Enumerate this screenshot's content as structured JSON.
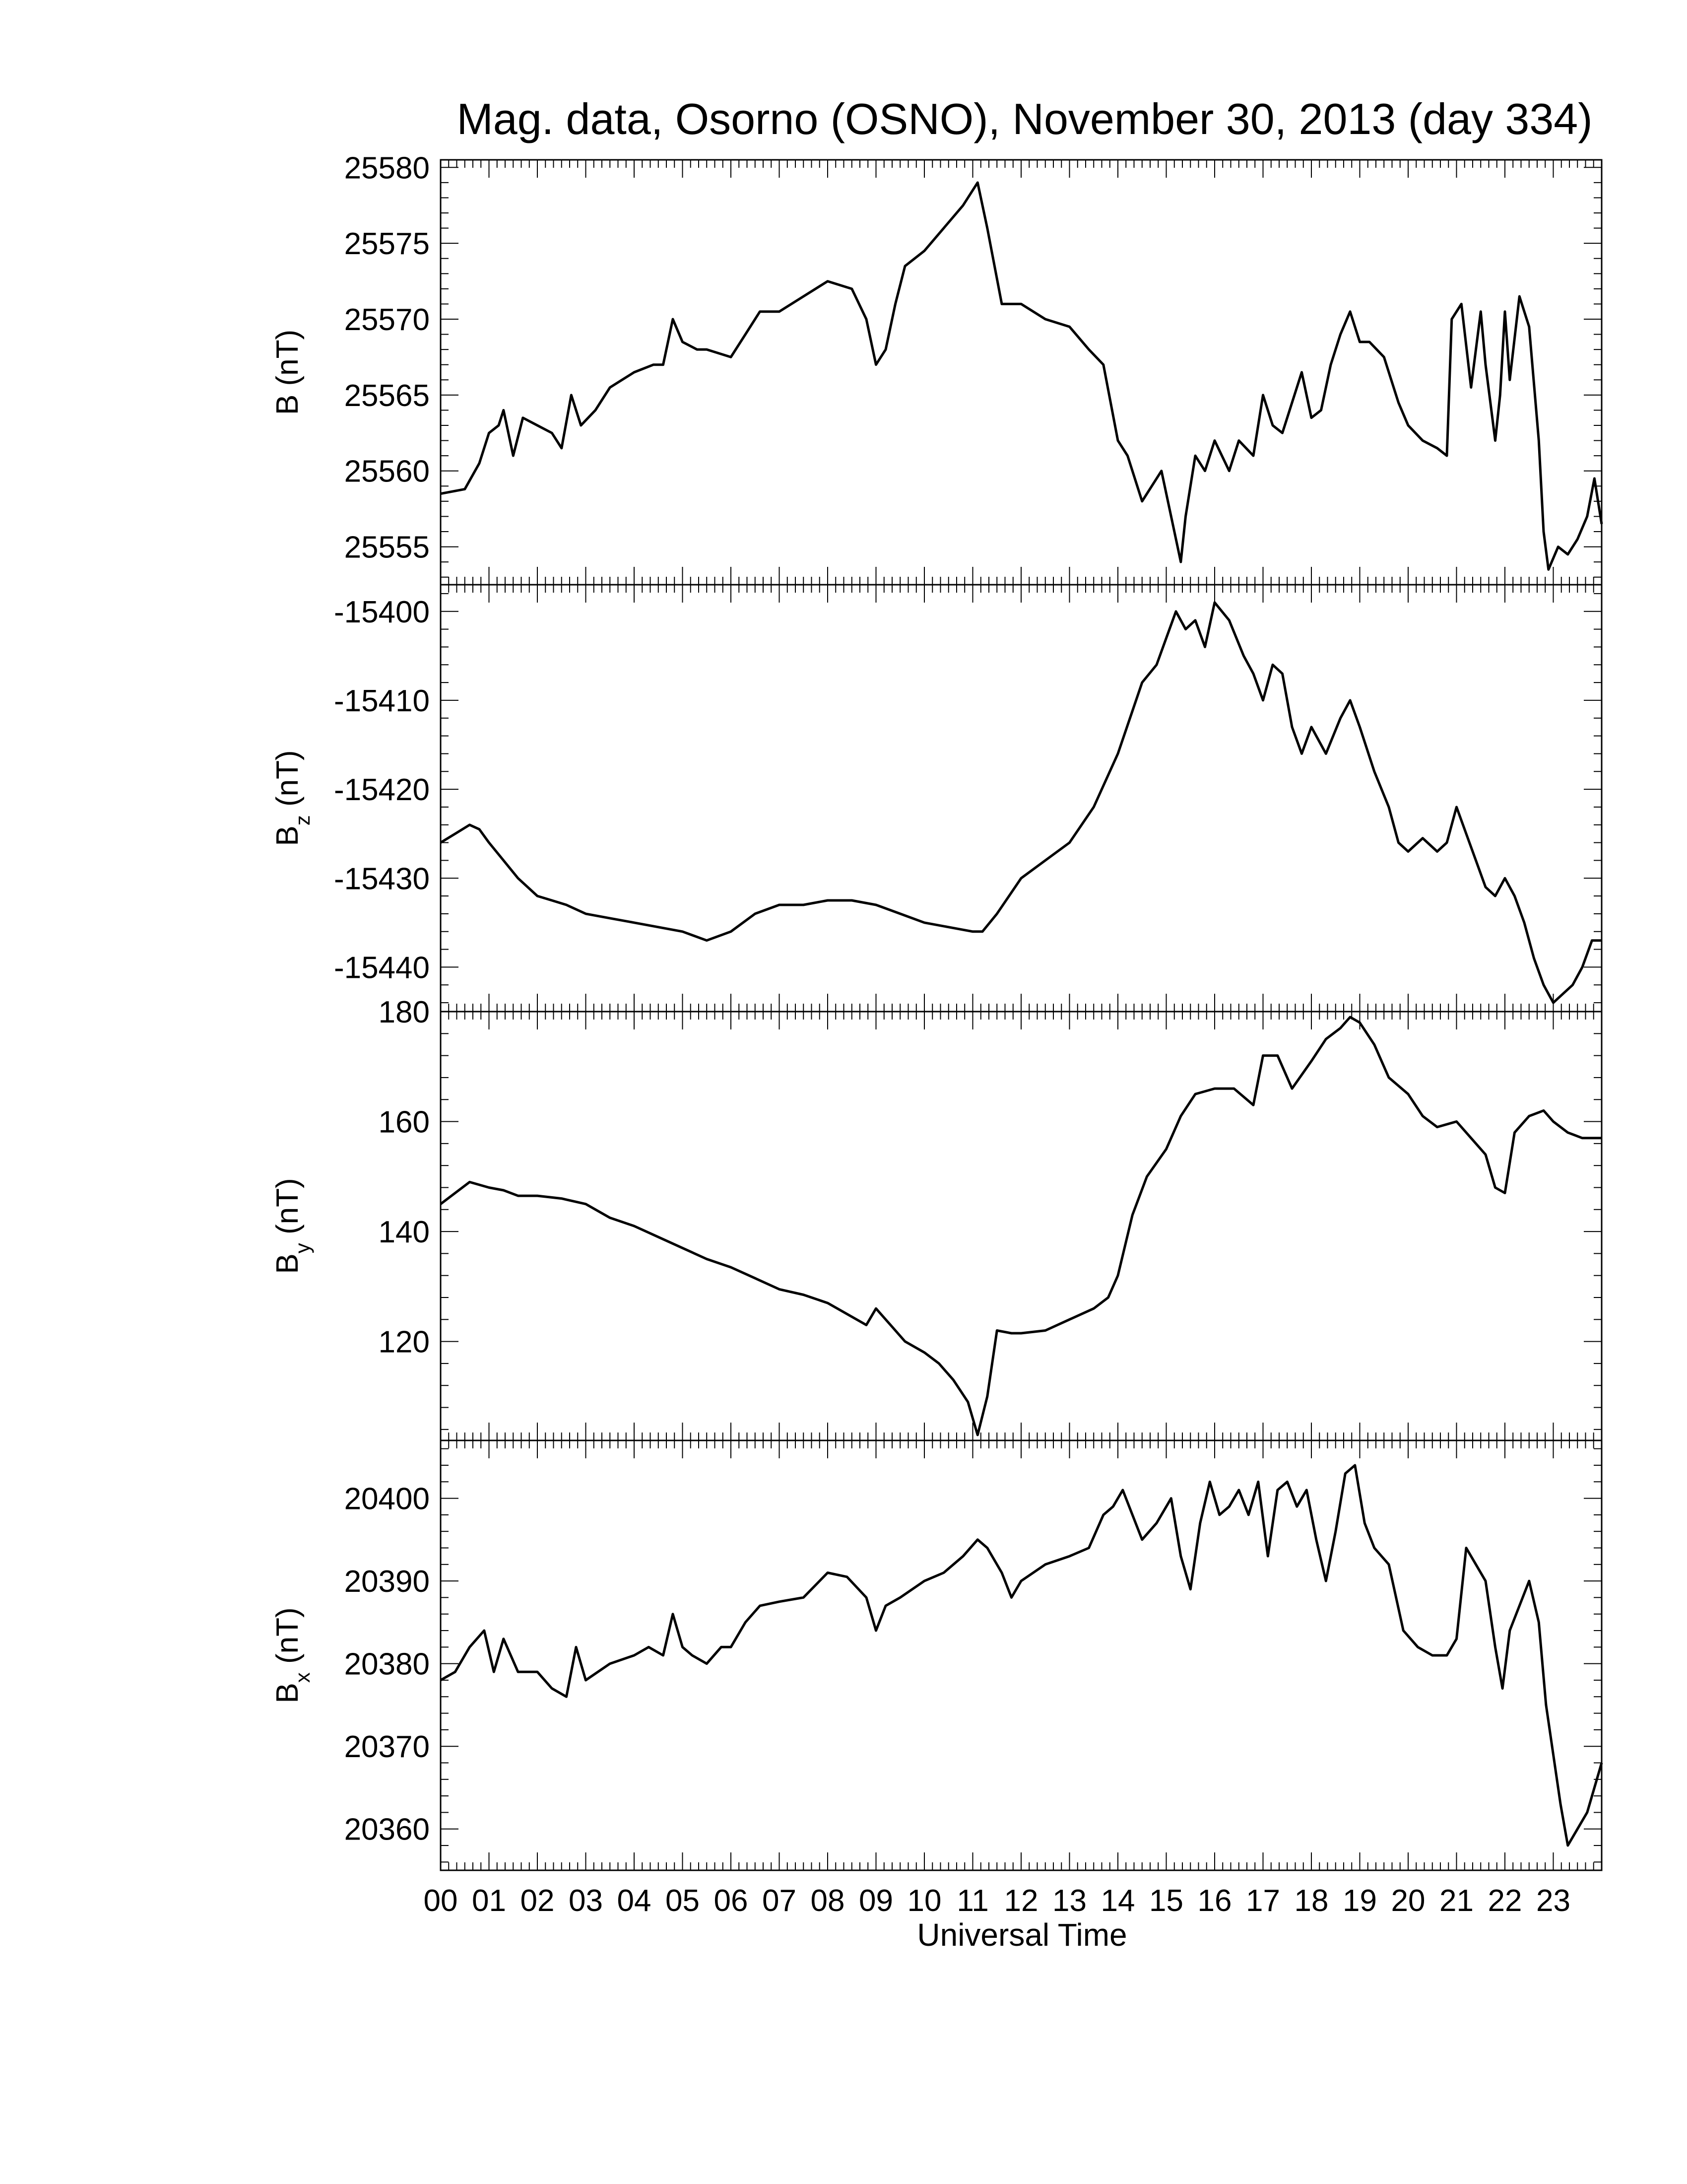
{
  "title": "Mag. data, Osorno (OSNO), November 30, 2013 (day 334)",
  "colors": {
    "line": "#000000",
    "background": "#ffffff"
  },
  "chart_data": {
    "type": "line",
    "xlabel": "Universal Time",
    "x_unit": "hours UT",
    "xlim": [
      0,
      24
    ],
    "x_tick_labels": [
      "00",
      "01",
      "02",
      "03",
      "04",
      "05",
      "06",
      "07",
      "08",
      "09",
      "10",
      "11",
      "12",
      "13",
      "14",
      "15",
      "16",
      "17",
      "18",
      "19",
      "20",
      "21",
      "22",
      "23"
    ],
    "grid": false,
    "panels": [
      {
        "id": "B",
        "ylabel_main": "B",
        "ylabel_sub": "",
        "ylabel_unit": "(nT)",
        "ylim": [
          25552.5,
          25580.5
        ],
        "yticks": [
          25555,
          25560,
          25565,
          25570,
          25575,
          25580
        ],
        "y_tick_labels": [
          "25555",
          "25560",
          "25565",
          "25570",
          "25575",
          "25580"
        ],
        "y_minor_step": 1,
        "x": [
          0,
          0.5,
          0.8,
          1,
          1.2,
          1.3,
          1.5,
          1.7,
          2,
          2.3,
          2.5,
          2.7,
          2.9,
          3.2,
          3.5,
          4,
          4.4,
          4.6,
          4.8,
          5,
          5.3,
          5.5,
          6,
          6.3,
          6.6,
          7,
          7.5,
          8,
          8.5,
          8.8,
          9,
          9.2,
          9.4,
          9.6,
          10,
          10.4,
          10.8,
          11.1,
          11.3,
          11.6,
          12,
          12.5,
          13,
          13.4,
          13.7,
          14,
          14.2,
          14.5,
          14.9,
          15.1,
          15.3,
          15.4,
          15.6,
          15.8,
          16,
          16.3,
          16.5,
          16.8,
          17,
          17.2,
          17.4,
          17.6,
          17.8,
          18,
          18.2,
          18.4,
          18.6,
          18.8,
          19,
          19.2,
          19.5,
          19.8,
          20,
          20.3,
          20.6,
          20.8,
          20.9,
          21.1,
          21.3,
          21.5,
          21.6,
          21.8,
          21.9,
          22,
          22.1,
          22.3,
          22.5,
          22.7,
          22.8,
          22.9,
          23.1,
          23.3,
          23.5,
          23.7,
          23.85,
          24
        ],
        "values": [
          25558.5,
          25558.8,
          25560.5,
          25562.5,
          25563,
          25564,
          25561,
          25563.5,
          25563,
          25562.5,
          25561.5,
          25565,
          25563,
          25564,
          25565.5,
          25566.5,
          25567,
          25567,
          25570,
          25568.5,
          25568,
          25568,
          25567.5,
          25569,
          25570.5,
          25570.5,
          25571.5,
          25572.5,
          25572,
          25570,
          25567,
          25568,
          25571,
          25573.5,
          25574.5,
          25576,
          25577.5,
          25579,
          25576,
          25571,
          25571,
          25570,
          25569.5,
          25568,
          25567,
          25562,
          25561,
          25558,
          25560,
          25557,
          25554,
          25557,
          25561,
          25560,
          25562,
          25560,
          25562,
          25561,
          25565,
          25563,
          25562.5,
          25564.5,
          25566.5,
          25563.5,
          25564,
          25567,
          25569,
          25570.5,
          25568.5,
          25568.5,
          25567.5,
          25564.5,
          25563,
          25562,
          25561.5,
          25561,
          25570,
          25571,
          25565.5,
          25570.5,
          25567,
          25562,
          25565,
          25570.5,
          25566,
          25571.5,
          25569.5,
          25562,
          25556,
          25553.5,
          25555,
          25554.5,
          25555.5,
          25557,
          25559.5,
          25556.5
        ]
      },
      {
        "id": "Bz",
        "ylabel_main": "B",
        "ylabel_sub": "z",
        "ylabel_unit": "(nT)",
        "ylim": [
          -15445,
          -15397
        ],
        "yticks": [
          -15440,
          -15430,
          -15420,
          -15410,
          -15400
        ],
        "y_tick_labels": [
          "-15440",
          "-15430",
          "-15420",
          "-15410",
          "-15400"
        ],
        "y_minor_step": 2,
        "x": [
          0,
          0.3,
          0.6,
          0.8,
          1,
          1.3,
          1.6,
          2,
          2.3,
          2.6,
          3,
          3.5,
          4,
          4.5,
          5,
          5.5,
          6,
          6.5,
          7,
          7.5,
          8,
          8.5,
          9,
          9.5,
          10,
          10.5,
          11,
          11.2,
          11.5,
          12,
          12.5,
          13,
          13.5,
          14,
          14.5,
          14.8,
          15,
          15.2,
          15.4,
          15.6,
          15.8,
          16,
          16.3,
          16.6,
          16.8,
          17,
          17.2,
          17.4,
          17.6,
          17.8,
          18,
          18.3,
          18.6,
          18.8,
          19,
          19.3,
          19.6,
          19.8,
          20,
          20.3,
          20.6,
          20.8,
          21,
          21.2,
          21.4,
          21.6,
          21.8,
          22,
          22.2,
          22.4,
          22.6,
          22.8,
          23,
          23.2,
          23.4,
          23.6,
          23.8,
          24
        ],
        "values": [
          -15426,
          -15425,
          -15424,
          -15424.5,
          -15426,
          -15428,
          -15430,
          -15432,
          -15432.5,
          -15433,
          -15434,
          -15434.5,
          -15435,
          -15435.5,
          -15436,
          -15437,
          -15436,
          -15434,
          -15433,
          -15433,
          -15432.5,
          -15432.5,
          -15433,
          -15434,
          -15435,
          -15435.5,
          -15436,
          -15436,
          -15434,
          -15430,
          -15428,
          -15426,
          -15422,
          -15416,
          -15408,
          -15406,
          -15403,
          -15400,
          -15402,
          -15401,
          -15404,
          -15399,
          -15401,
          -15405,
          -15407,
          -15410,
          -15406,
          -15407,
          -15413,
          -15416,
          -15413,
          -15416,
          -15412,
          -15410,
          -15413,
          -15418,
          -15422,
          -15426,
          -15427,
          -15425.5,
          -15427,
          -15426,
          -15422,
          -15425,
          -15428,
          -15431,
          -15432,
          -15430,
          -15432,
          -15435,
          -15439,
          -15442,
          -15444,
          -15443,
          -15442,
          -15440,
          -15437,
          -15437
        ]
      },
      {
        "id": "By",
        "ylabel_main": "B",
        "ylabel_sub": "y",
        "ylabel_unit": "(nT)",
        "ylim": [
          102,
          180
        ],
        "yticks": [
          120,
          140,
          160,
          180
        ],
        "y_tick_labels": [
          "120",
          "140",
          "160",
          "180"
        ],
        "y_minor_step": 4,
        "x": [
          0,
          0.3,
          0.6,
          1,
          1.3,
          1.6,
          2,
          2.5,
          3,
          3.5,
          4,
          4.5,
          5,
          5.5,
          6,
          6.5,
          7,
          7.5,
          8,
          8.5,
          8.8,
          9,
          9.3,
          9.6,
          10,
          10.3,
          10.6,
          10.9,
          11.1,
          11.3,
          11.5,
          11.8,
          12,
          12.5,
          13,
          13.5,
          13.8,
          14,
          14.3,
          14.6,
          15,
          15.3,
          15.6,
          16,
          16.4,
          16.8,
          17,
          17.3,
          17.6,
          18,
          18.3,
          18.6,
          18.8,
          19,
          19.3,
          19.6,
          20,
          20.3,
          20.6,
          21,
          21.3,
          21.6,
          21.8,
          22,
          22.2,
          22.5,
          22.8,
          23,
          23.3,
          23.6,
          24
        ],
        "values": [
          145,
          147,
          149,
          148,
          147.5,
          146.5,
          146.5,
          146,
          145,
          142.5,
          141,
          139,
          137,
          135,
          133.5,
          131.5,
          129.5,
          128.5,
          127,
          124.5,
          123,
          126,
          123,
          120,
          118,
          116,
          113,
          109,
          103,
          110,
          122,
          121.5,
          121.5,
          122,
          124,
          126,
          128,
          132,
          143,
          150,
          155,
          161,
          165,
          166,
          166,
          163,
          172,
          172,
          166,
          171,
          175,
          177,
          179,
          178,
          174,
          168,
          165,
          161,
          159,
          160,
          157,
          154,
          148,
          147,
          158,
          161,
          162,
          160,
          158,
          157,
          157
        ]
      },
      {
        "id": "Bx",
        "ylabel_main": "B",
        "ylabel_sub": "x",
        "ylabel_unit": "(nT)",
        "ylim": [
          20355,
          20407
        ],
        "yticks": [
          20360,
          20370,
          20380,
          20390,
          20400
        ],
        "y_tick_labels": [
          "20360",
          "20370",
          "20380",
          "20390",
          "20400"
        ],
        "y_minor_step": 2,
        "x": [
          0,
          0.3,
          0.6,
          0.9,
          1.1,
          1.3,
          1.6,
          2,
          2.3,
          2.6,
          2.8,
          3,
          3.5,
          4,
          4.3,
          4.6,
          4.8,
          5,
          5.2,
          5.5,
          5.8,
          6,
          6.3,
          6.6,
          7,
          7.5,
          8,
          8.4,
          8.8,
          9,
          9.2,
          9.5,
          10,
          10.4,
          10.8,
          11.1,
          11.3,
          11.6,
          11.8,
          12,
          12.5,
          13,
          13.4,
          13.7,
          13.9,
          14.1,
          14.3,
          14.5,
          14.8,
          15.1,
          15.3,
          15.5,
          15.7,
          15.9,
          16.1,
          16.3,
          16.5,
          16.7,
          16.9,
          17.1,
          17.3,
          17.5,
          17.7,
          17.9,
          18.1,
          18.3,
          18.5,
          18.7,
          18.9,
          19.1,
          19.3,
          19.6,
          19.9,
          20.2,
          20.5,
          20.8,
          21,
          21.2,
          21.4,
          21.6,
          21.8,
          21.95,
          22.1,
          22.3,
          22.5,
          22.7,
          22.85,
          23,
          23.15,
          23.3,
          23.5,
          23.7,
          23.85,
          24
        ],
        "values": [
          20378,
          20379,
          20382,
          20384,
          20379,
          20383,
          20379,
          20379,
          20377,
          20376,
          20382,
          20378,
          20380,
          20381,
          20382,
          20381,
          20386,
          20382,
          20381,
          20380,
          20382,
          20382,
          20385,
          20387,
          20387.5,
          20388,
          20391,
          20390.5,
          20388,
          20384,
          20387,
          20388,
          20390,
          20391,
          20393,
          20395,
          20394,
          20391,
          20388,
          20390,
          20392,
          20393,
          20394,
          20398,
          20399,
          20401,
          20398,
          20395,
          20397,
          20400,
          20393,
          20389,
          20397,
          20402,
          20398,
          20399,
          20401,
          20398,
          20402,
          20393,
          20401,
          20402,
          20399,
          20401,
          20395,
          20390,
          20396,
          20403,
          20404,
          20397,
          20394,
          20392,
          20384,
          20382,
          20381,
          20381,
          20383,
          20394,
          20392,
          20390,
          20382,
          20377,
          20384,
          20387,
          20390,
          20385,
          20375,
          20369,
          20363,
          20358,
          20360,
          20362,
          20365,
          20368
        ]
      }
    ]
  }
}
